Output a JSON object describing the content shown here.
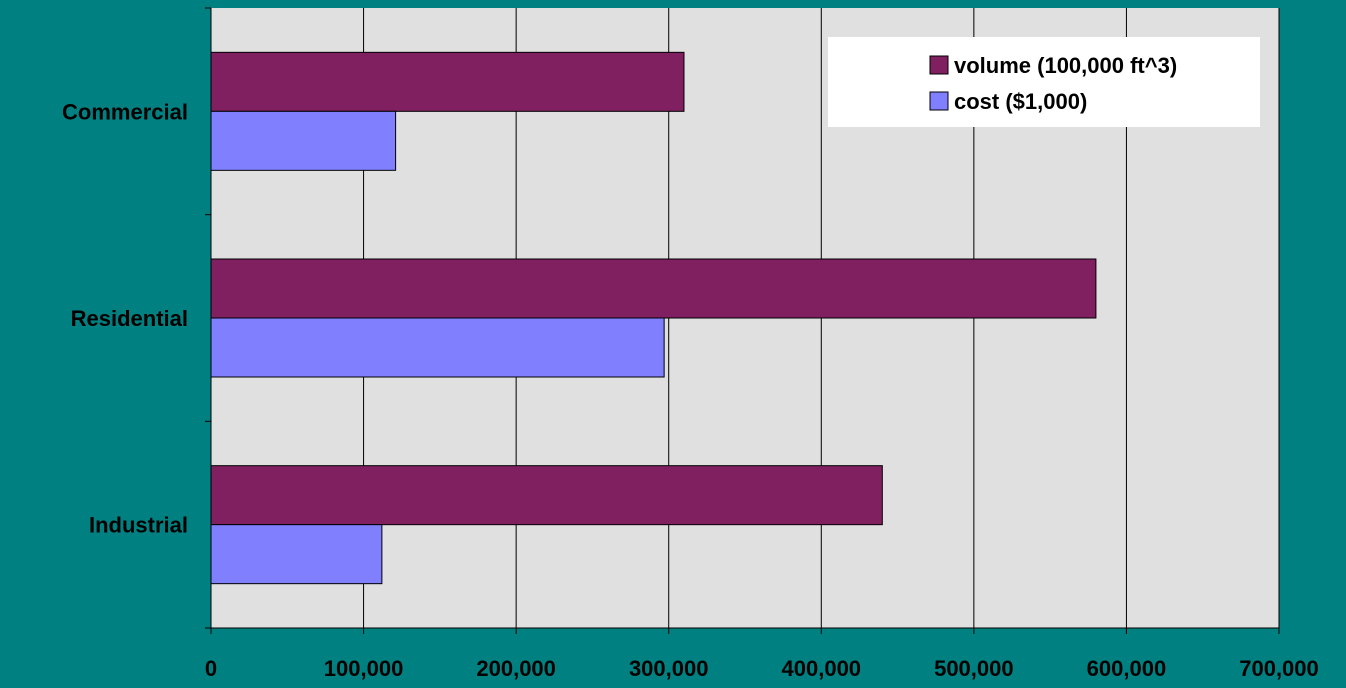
{
  "chart_data": {
    "type": "bar",
    "orientation": "horizontal",
    "categories": [
      "Commercial",
      "Residential",
      "Industrial"
    ],
    "series": [
      {
        "name": "volume (100,000 ft^3)",
        "values": [
          310000,
          580000,
          440000
        ],
        "color": "#802060"
      },
      {
        "name": "cost ($1,000)",
        "values": [
          121000,
          297000,
          112000
        ],
        "color": "#8080FF"
      }
    ],
    "xlim": [
      0,
      700000
    ],
    "x_ticks": [
      "0",
      "100,000",
      "200,000",
      "300,000",
      "400,000",
      "500,000",
      "600,000",
      "700,000"
    ],
    "grid": true,
    "legend": "top-right",
    "background": "#008080",
    "plot_background": "#E0E0E0"
  }
}
